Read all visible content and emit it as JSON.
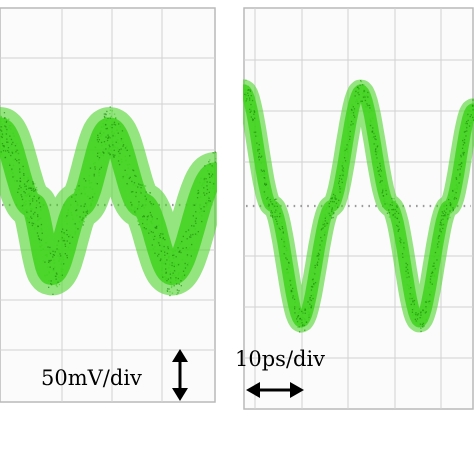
{
  "panels": [
    {
      "name": "left",
      "scale_label": "50mV/div",
      "arrow": "vertical-double-arrow"
    },
    {
      "name": "right",
      "scale_label": "10ps/div",
      "arrow": "horizontal-double-arrow"
    }
  ],
  "colors": {
    "trace": "#3fd21c",
    "trace_dark": "#1f8f0e",
    "grid": "#d2d2d2",
    "frame": "#b9b9b9",
    "background": "#ffffff"
  },
  "chart_data": [
    {
      "type": "line",
      "title": "",
      "xlabel": "",
      "ylabel": "",
      "grid": true,
      "scale": "50mV/div",
      "xlim": [
        0,
        5
      ],
      "ylim": [
        -4.5,
        4.5
      ],
      "x": [
        0.0,
        0.75,
        1.2,
        1.85,
        2.55,
        3.3,
        4.0,
        5.0
      ],
      "series": [
        {
          "values": [
            2.0,
            0.0,
            -1.8,
            0.0,
            2.0,
            0.0,
            -1.8,
            0.8
          ]
        }
      ]
    },
    {
      "type": "line",
      "title": "",
      "xlabel": "",
      "ylabel": "",
      "grid": true,
      "scale": "10ps/div",
      "xlim": [
        0,
        5
      ],
      "ylim": [
        -4.5,
        4.5
      ],
      "x": [
        0.0,
        0.62,
        1.25,
        1.91,
        2.55,
        3.2,
        3.83,
        4.47,
        5.0
      ],
      "series": [
        {
          "values": [
            2.75,
            0.0,
            -2.75,
            0.0,
            2.75,
            0.0,
            -2.75,
            0.0,
            2.3
          ]
        }
      ]
    }
  ]
}
